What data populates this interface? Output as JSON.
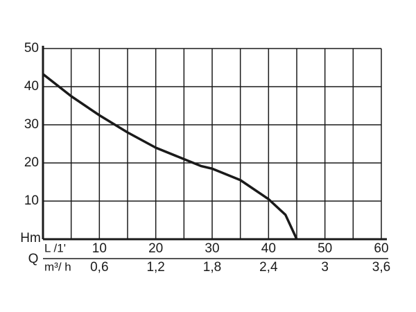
{
  "chart_data": {
    "type": "line",
    "y_label": "Hm",
    "x_label": "Q",
    "x_unit": "L /1'",
    "x2_unit": "m³/ h",
    "x": [
      0,
      5,
      10,
      15,
      20,
      25,
      28,
      30,
      35,
      40,
      43,
      45
    ],
    "series": [
      {
        "color": "#1a1a1a",
        "values": [
          43.3,
          37.5,
          32.5,
          28,
          24,
          21,
          19.2,
          18.5,
          15.5,
          10.5,
          6.4,
          0
        ]
      }
    ],
    "xlim": [
      0,
      60
    ],
    "xticks": [
      10,
      20,
      30,
      40,
      50,
      60
    ],
    "xminorticks": [
      5,
      15,
      25,
      35,
      45,
      55
    ],
    "x2lim": [
      0,
      3.6
    ],
    "x2ticks": [
      {
        "value": 0.6,
        "label": "0,6"
      },
      {
        "value": 1.2,
        "label": "1,2"
      },
      {
        "value": 1.8,
        "label": "1,8"
      },
      {
        "value": 2.4,
        "label": "2,4"
      },
      {
        "value": 3,
        "label": "3"
      },
      {
        "value": 3.6,
        "label": "3,6"
      }
    ],
    "ylim": [
      0,
      50
    ],
    "yticks": [
      10,
      20,
      30,
      40,
      50
    ],
    "grid": true
  }
}
